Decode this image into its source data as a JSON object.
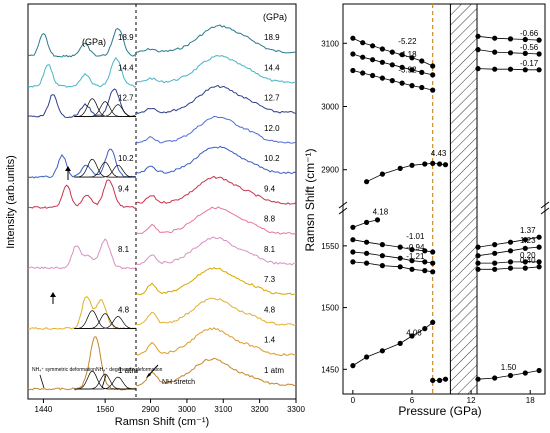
{
  "chart_data": [
    {
      "type": "line",
      "xlabel": "Ramsn Shift (cm⁻¹)",
      "ylabel": "Intensity (arb.units)",
      "unit_label": "(GPa)",
      "x_ticks_left": [
        "1440",
        "1560"
      ],
      "x_ticks_right": [
        "2900",
        "3000",
        "3100",
        "3200",
        "3300"
      ],
      "xlim_left": [
        1410,
        1620
      ],
      "xlim_right": [
        2860,
        3300
      ],
      "pressures": [
        "18.9",
        "14.4",
        "12.7",
        "12.0",
        "10.2",
        "9.4",
        "8.8",
        "8.1",
        "7.3",
        "4.8",
        "1.4",
        "1 atm"
      ],
      "left_panel_labels": [
        "18.9",
        "14.4",
        "12.7",
        "10.2",
        "9.4",
        "8.1",
        "4.8",
        "1 atm"
      ],
      "series_colors": [
        "#2a7a8c",
        "#47b4c8",
        "#2c3f8a",
        "#4f6ed6",
        "#3a5fc4",
        "#c9344f",
        "#e87696",
        "#d990c0",
        "#d6a700",
        "#e0b030",
        "#e09a28",
        "#c7862a"
      ],
      "annotations": {
        "nh4_sym": "NH₄⁺ symmetric deformation",
        "nh4_deg": "NH₄⁺ degenerate deformation",
        "nh_stretch": "NH stretch"
      }
    },
    {
      "type": "scatter",
      "xlabel": "Pressure (GPa)",
      "ylabel": "Ramsn Shift (cm⁻¹)",
      "x_ticks": [
        "0",
        "6",
        "12",
        "18"
      ],
      "xlim": [
        -1,
        19.5
      ],
      "y_ticks": [
        "1450",
        "1500",
        "1550",
        "2900",
        "3000",
        "3100"
      ],
      "ylim_lower": [
        1430,
        1575
      ],
      "ylim_upper": [
        2860,
        3140
      ],
      "dashed_line_pressure": 8.1,
      "hatched_region": [
        9.9,
        12.6
      ],
      "series": [
        {
          "label": "-5.22",
          "x": [
            0,
            1,
            2,
            3,
            4,
            5,
            6,
            7,
            8.1
          ],
          "y": [
            3108,
            3101,
            3096,
            3091,
            3086,
            3082,
            3077,
            3072,
            3064
          ]
        },
        {
          "label": "-4.18",
          "x": [
            0,
            1,
            2,
            3,
            4,
            5,
            6,
            7,
            8.1
          ],
          "y": [
            3083,
            3078,
            3074,
            3070,
            3066,
            3062,
            3058,
            3054,
            3050
          ]
        },
        {
          "label": "-3.92",
          "x": [
            0,
            1,
            2,
            3,
            4,
            5,
            6,
            7,
            8.1
          ],
          "y": [
            3057,
            3053,
            3049,
            3045,
            3041,
            3037,
            3033,
            3030,
            3026
          ]
        },
        {
          "label": "4.43",
          "x": [
            1.4,
            3,
            4.8,
            6,
            7.3,
            8.1,
            8.8,
            9.4
          ],
          "y": [
            2881,
            2893,
            2902,
            2907,
            2909,
            2910,
            2909,
            2908
          ]
        },
        {
          "label": "-0.66",
          "x": [
            12.7,
            14.4,
            16,
            17.5,
            18.9
          ],
          "y": [
            3111,
            3108,
            3107,
            3106,
            3105
          ]
        },
        {
          "label": "-0.56",
          "x": [
            12.7,
            14.4,
            16,
            17.5,
            18.9
          ],
          "y": [
            3090,
            3086,
            3085,
            3084,
            3083
          ]
        },
        {
          "label": "-0.17",
          "x": [
            12.7,
            14.4,
            16,
            17.5,
            18.9
          ],
          "y": [
            3060,
            3059,
            3059,
            3058,
            3058
          ]
        },
        {
          "label": "4.18",
          "x": [
            0,
            1.4,
            2.5
          ],
          "y": [
            1565,
            1569,
            1571
          ]
        },
        {
          "label": "-1.01",
          "x": [
            0,
            1.4,
            3,
            4.8,
            6,
            7.3,
            8.1
          ],
          "y": [
            1555,
            1553,
            1551,
            1549,
            1547,
            1546,
            1545
          ]
        },
        {
          "label": "-0.94",
          "x": [
            0,
            1.4,
            3,
            4.8,
            6,
            7.3,
            8.1
          ],
          "y": [
            1545,
            1544,
            1542,
            1540,
            1538,
            1537,
            1536
          ]
        },
        {
          "label": "-1.21",
          "x": [
            0,
            1.4,
            3,
            4.8,
            6,
            7.3,
            8.1
          ],
          "y": [
            1537,
            1536,
            1534,
            1533,
            1531,
            1530,
            1529
          ]
        },
        {
          "label": "4.08",
          "x": [
            0,
            1.4,
            3,
            4.8,
            6,
            7.3,
            8.1
          ],
          "y": [
            1453,
            1460,
            1465,
            1471,
            1477,
            1483,
            1488
          ]
        },
        {
          "label": "1.37",
          "x": [
            12.7,
            14.4,
            16,
            17.5,
            18.9
          ],
          "y": [
            1549,
            1551,
            1553,
            1555,
            1557
          ]
        },
        {
          "label": "1.23",
          "x": [
            12.7,
            14.4,
            16,
            17.5,
            18.9
          ],
          "y": [
            1542,
            1544,
            1546,
            1548,
            1549
          ]
        },
        {
          "label": "0.20",
          "x": [
            12.7,
            14.4,
            16,
            17.5,
            18.9
          ],
          "y": [
            1536,
            1536,
            1537,
            1537,
            1537
          ]
        },
        {
          "label": "0.40",
          "x": [
            12.7,
            14.4,
            16,
            17.5,
            18.9
          ],
          "y": [
            1531,
            1531,
            1532,
            1532,
            1533
          ]
        },
        {
          "label": "1.50",
          "x": [
            8.1,
            8.8,
            9.4,
            12.7,
            14.4,
            16,
            17.5,
            18.9
          ],
          "y": [
            1441,
            1441,
            1442,
            1442,
            1443,
            1445,
            1447,
            1449
          ]
        }
      ]
    }
  ]
}
